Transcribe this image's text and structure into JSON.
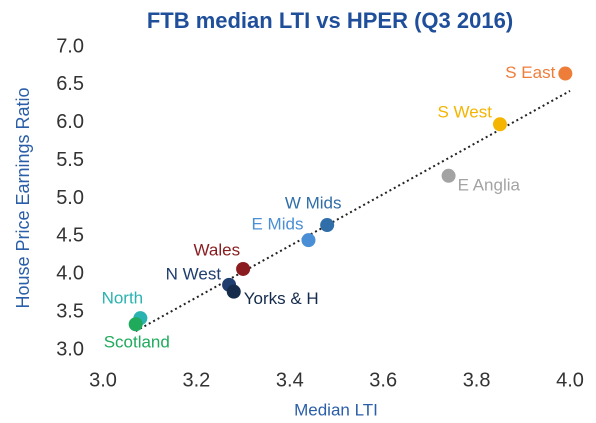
{
  "chart_data": {
    "type": "scatter",
    "title": "FTB median LTI vs HPER (Q3 2016)",
    "x_label": "Median LTI",
    "y_label": "House Price Earnings Ratio",
    "xlim": [
      3.0,
      4.0
    ],
    "ylim": [
      3.0,
      7.0
    ],
    "xticks": [
      {
        "value": 3.0,
        "label": "3.0"
      },
      3.2,
      3.4,
      3.6,
      3.8,
      {
        "value": 4.0,
        "label": "4.0"
      }
    ],
    "yticks": [
      {
        "value": 3.0,
        "label": "3.0"
      },
      3.5,
      {
        "value": 4.0,
        "label": "4.0"
      },
      4.5,
      {
        "value": 5.0,
        "label": "5.0"
      },
      5.5,
      {
        "value": 6.0,
        "label": "6.0"
      },
      6.5,
      {
        "value": 7.0,
        "label": "7.0"
      }
    ],
    "grid": false,
    "series": [
      {
        "name": "S East",
        "color": "#ef7d3a",
        "x": [
          3.99
        ],
        "values": [
          6.65
        ]
      },
      {
        "name": "S West",
        "color": "#f4b400",
        "x": [
          3.85
        ],
        "values": [
          5.98
        ]
      },
      {
        "name": "E Anglia",
        "color": "#a3a3a3",
        "x": [
          3.74
        ],
        "values": [
          5.3
        ]
      },
      {
        "name": "W Mids",
        "color": "#2f6ea8",
        "x": [
          3.48
        ],
        "values": [
          4.65
        ]
      },
      {
        "name": "E Mids",
        "color": "#4a8fd6",
        "x": [
          3.44
        ],
        "values": [
          4.45
        ]
      },
      {
        "name": "Wales",
        "color": "#8a1c1f",
        "x": [
          3.3
        ],
        "values": [
          4.07
        ]
      },
      {
        "name": "N West",
        "color": "#1f3d6e",
        "x": [
          3.27
        ],
        "values": [
          3.86
        ]
      },
      {
        "name": "Yorks & H",
        "color": "#142b4c",
        "x": [
          3.28
        ],
        "values": [
          3.77
        ]
      },
      {
        "name": "North",
        "color": "#2bb3b1",
        "x": [
          3.08
        ],
        "values": [
          3.42
        ]
      },
      {
        "name": "Scotland",
        "color": "#1faa5c",
        "x": [
          3.07
        ],
        "values": [
          3.34
        ]
      }
    ],
    "trendline": {
      "x": [
        3.07,
        4.0
      ],
      "y": [
        3.25,
        6.42
      ]
    }
  }
}
